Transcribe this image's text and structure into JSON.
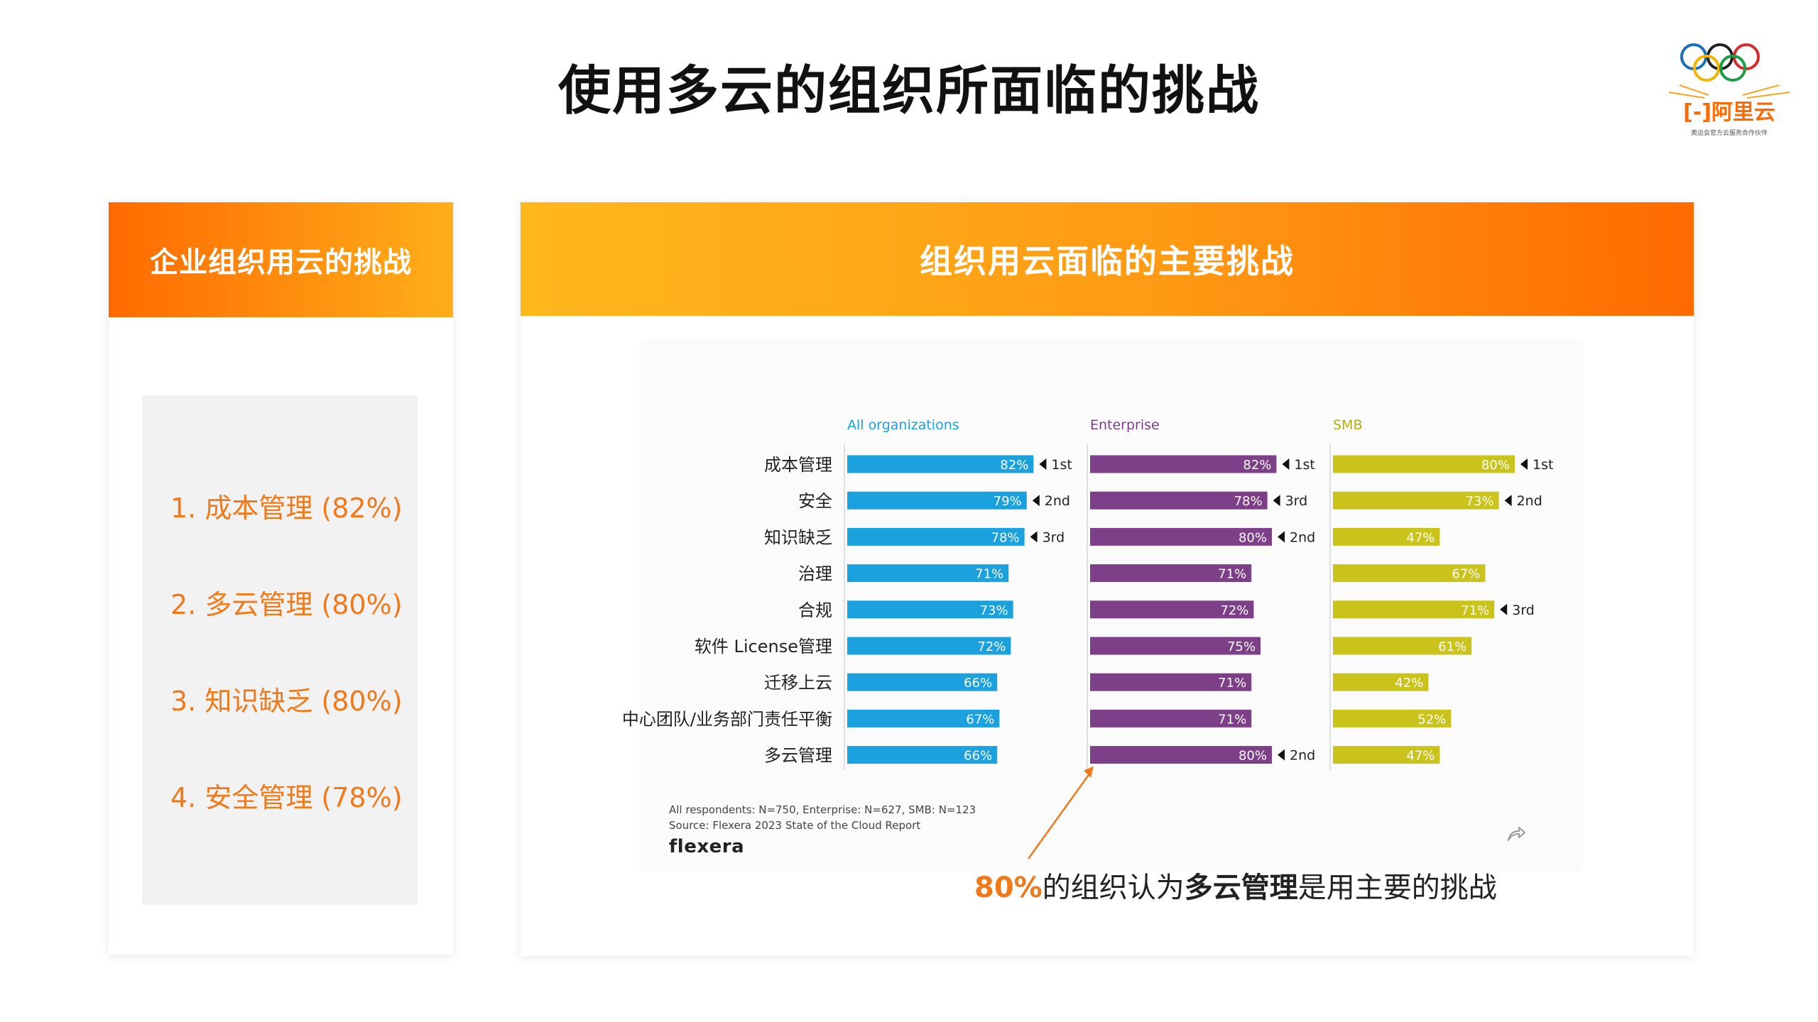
{
  "page": {
    "title": "使用多云的组织所面临的挑战"
  },
  "logo": {
    "text": "阿里云",
    "tagline": "奥运会官方云服务合作伙伴"
  },
  "left_card": {
    "header": "企业组织用云的挑战",
    "items": [
      {
        "label": "1.  成本管理 (82%)"
      },
      {
        "label": "2.  多云管理 (80%)"
      },
      {
        "label": "3.  知识缺乏 (80%)"
      },
      {
        "label": "4.  安全管理 (78%)"
      }
    ]
  },
  "right_card": {
    "header": "组织用云面临的主要挑战",
    "footnote1": "All respondents: N=750, Enterprise: N=627, SMB: N=123",
    "footnote2": "Source: Flexera 2023 State of the Cloud Report",
    "brand": "flexera",
    "callout": {
      "pct": "80%",
      "part1": "的组织认为",
      "bold": "多云管理",
      "part2": "是用主要的挑战"
    }
  },
  "colors": {
    "all": "#1ba1dd",
    "enterprise": "#7d3f87",
    "smb": "#c9c31c",
    "accent": "#f07a1a"
  },
  "chart_data": {
    "type": "bar",
    "orientation": "horizontal",
    "categories": [
      "成本管理",
      "安全",
      "知识缺乏",
      "治理",
      "合规",
      "软件 License管理",
      "迁移上云",
      "中心团队/业务部门责任平衡",
      "多云管理"
    ],
    "series": [
      {
        "name": "All organizations",
        "values": [
          82,
          79,
          78,
          71,
          73,
          72,
          66,
          67,
          66
        ],
        "ranks": [
          "1st",
          "2nd",
          "3rd",
          "",
          "",
          "",
          "",
          "",
          ""
        ]
      },
      {
        "name": "Enterprise",
        "values": [
          82,
          78,
          80,
          71,
          72,
          75,
          71,
          71,
          80
        ],
        "ranks": [
          "1st",
          "3rd",
          "2nd",
          "",
          "",
          "",
          "",
          "",
          "2nd"
        ]
      },
      {
        "name": "SMB",
        "values": [
          80,
          73,
          47,
          67,
          71,
          61,
          42,
          52,
          47
        ],
        "ranks": [
          "1st",
          "2nd",
          "",
          "",
          "3rd",
          "",
          "",
          "",
          ""
        ]
      }
    ],
    "value_suffix": "%",
    "xlim": [
      0,
      100
    ]
  }
}
